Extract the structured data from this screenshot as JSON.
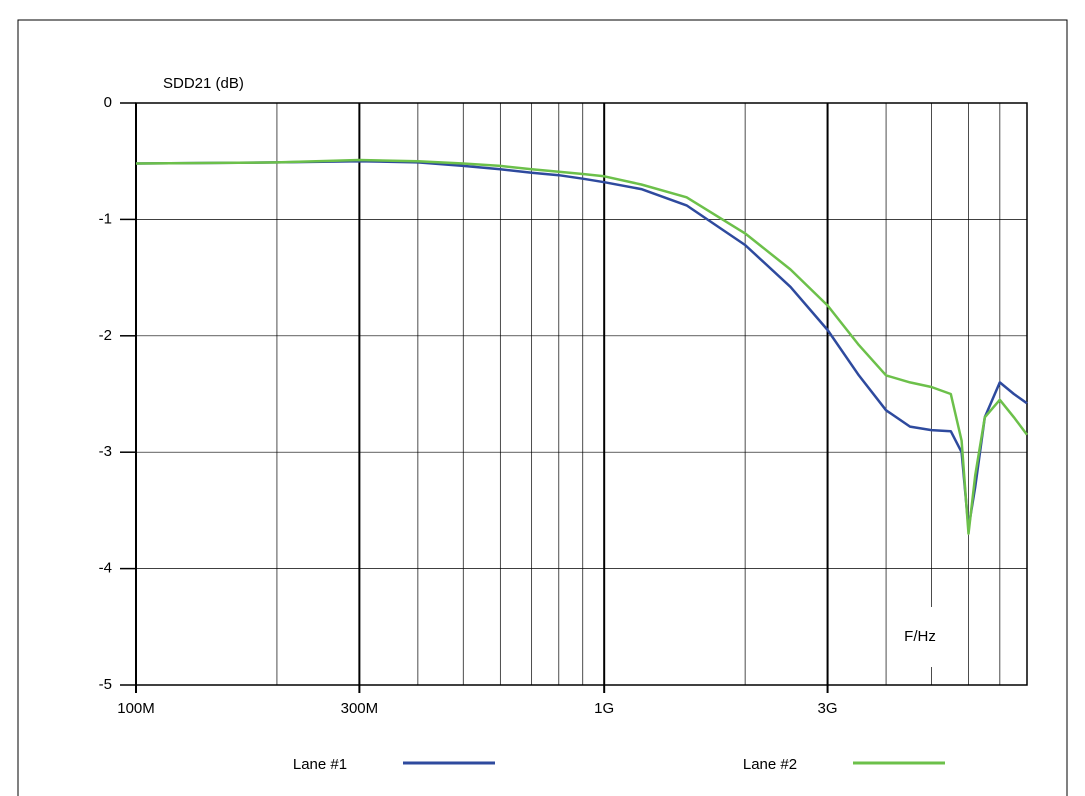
{
  "chart_data": {
    "type": "line",
    "y_label": "SDD21 (dB)",
    "x_annotation": "F/Hz",
    "x": [
      100000000,
      200000000,
      300000000,
      400000000,
      500000000,
      600000000,
      700000000,
      800000000,
      900000000,
      1000000000,
      1200000000,
      1500000000,
      2000000000,
      2500000000,
      3000000000,
      3500000000,
      4000000000,
      4500000000,
      5000000000,
      5500000000,
      5800000000,
      6000000000,
      6200000000,
      6500000000,
      7000000000,
      7500000000,
      8000000000
    ],
    "series": [
      {
        "name": "Lane #1",
        "color": "#2e4a9e",
        "values": [
          -0.52,
          -0.51,
          -0.5,
          -0.51,
          -0.54,
          -0.57,
          -0.6,
          -0.62,
          -0.65,
          -0.68,
          -0.74,
          -0.88,
          -1.22,
          -1.58,
          -1.95,
          -2.34,
          -2.64,
          -2.78,
          -2.81,
          -2.82,
          -3.0,
          -3.65,
          -3.3,
          -2.7,
          -2.4,
          -2.5,
          -2.58
        ]
      },
      {
        "name": "Lane #2",
        "color": "#6cc04a",
        "values": [
          -0.52,
          -0.51,
          -0.49,
          -0.5,
          -0.52,
          -0.54,
          -0.57,
          -0.59,
          -0.61,
          -0.63,
          -0.7,
          -0.81,
          -1.12,
          -1.43,
          -1.74,
          -2.08,
          -2.34,
          -2.4,
          -2.44,
          -2.5,
          -2.9,
          -3.7,
          -3.2,
          -2.7,
          -2.55,
          -2.7,
          -2.85
        ]
      }
    ],
    "xscale": "log",
    "xlim": [
      100000000,
      8000000000
    ],
    "xticks": [
      {
        "value": 100000000,
        "label": "100M"
      },
      {
        "value": 300000000,
        "label": "300M"
      },
      {
        "value": 1000000000,
        "label": "1G"
      },
      {
        "value": 3000000000,
        "label": "3G"
      }
    ],
    "xminor": [
      200000000,
      400000000,
      500000000,
      600000000,
      700000000,
      800000000,
      900000000,
      2000000000,
      4000000000,
      5000000000,
      6000000000,
      7000000000
    ],
    "ylim": [
      -5,
      0
    ],
    "yticks": [
      -5,
      -4,
      -3,
      -2,
      -1,
      0
    ],
    "grid": true
  }
}
